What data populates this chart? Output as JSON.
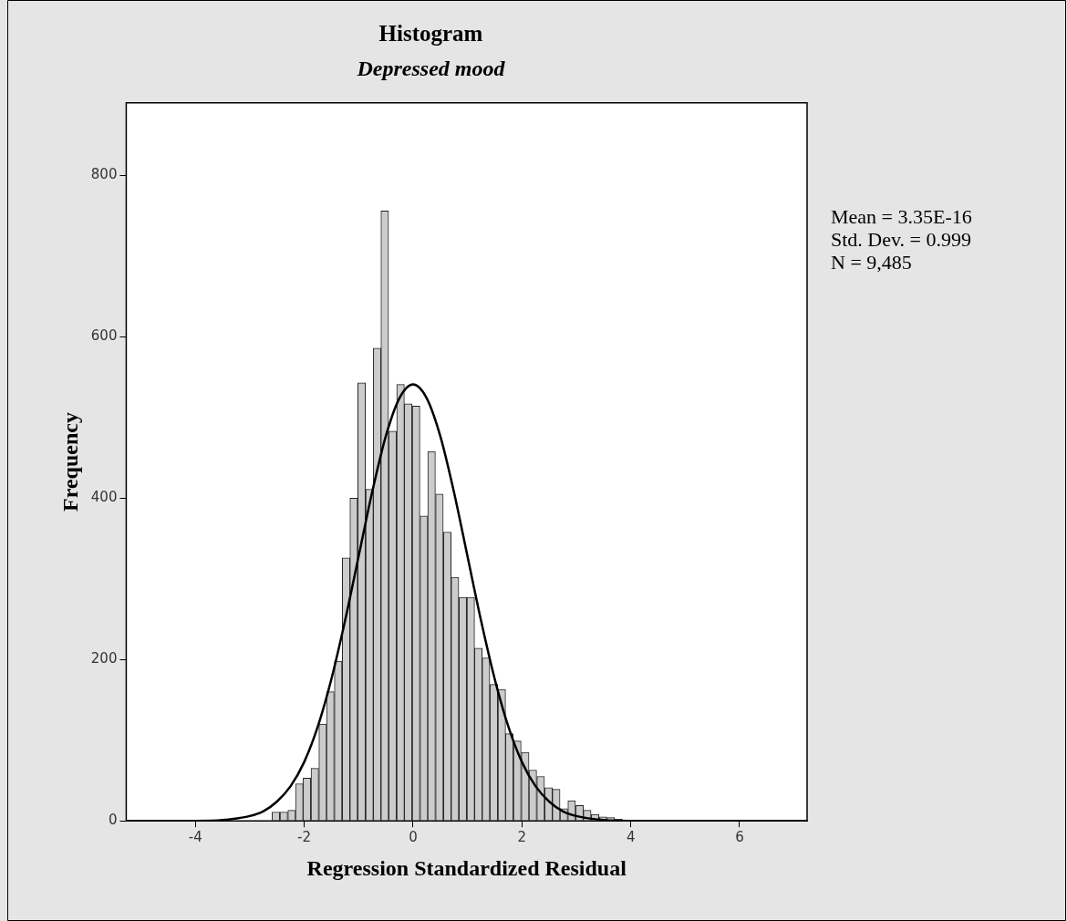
{
  "chart_data": {
    "type": "histogram",
    "title": "Histogram",
    "subtitle": "Depressed mood",
    "xlabel": "Regression Standardized Residual",
    "ylabel": "Frequency",
    "bins": [
      -2.59,
      -2.45,
      -2.3,
      -2.16,
      -2.02,
      -1.88,
      -1.73,
      -1.59,
      -1.45,
      -1.3,
      -1.16,
      -1.02,
      -0.87,
      -0.73,
      -0.59,
      -0.45,
      -0.3,
      -0.16,
      -0.02,
      0.13,
      0.27,
      0.41,
      0.56,
      0.7,
      0.84,
      0.99,
      1.13,
      1.27,
      1.41,
      1.56,
      1.7,
      1.84,
      1.99,
      2.13,
      2.27,
      2.42,
      2.56,
      2.7,
      2.84,
      2.99,
      3.13,
      3.27,
      3.42,
      3.56,
      3.7,
      3.85
    ],
    "values": [
      11,
      11,
      13,
      46,
      53,
      65,
      120,
      160,
      198,
      326,
      400,
      543,
      411,
      586,
      756,
      483,
      541,
      517,
      514,
      378,
      458,
      405,
      358,
      302,
      277,
      277,
      214,
      202,
      169,
      163,
      108,
      99,
      85,
      63,
      55,
      41,
      39,
      15,
      25,
      19,
      13,
      8,
      5,
      4,
      2
    ],
    "color": "#cccccc",
    "series": [
      {
        "type": "line",
        "color": "#000000",
        "x": [
          -5.27,
          -4,
          -3.5,
          -3,
          -2.75,
          -2.5,
          -2.25,
          -2,
          -1.75,
          -1.5,
          -1.25,
          -1,
          -0.75,
          -0.5,
          -0.25,
          0,
          0.25,
          0.5,
          0.75,
          1,
          1.25,
          1.5,
          1.75,
          2,
          2.25,
          2.5,
          2.75,
          3,
          3.5,
          4,
          7.24
        ],
        "values": [
          0,
          0,
          1,
          6,
          12,
          24,
          43,
          73,
          117,
          176,
          248,
          328,
          408,
          477,
          524,
          541,
          524,
          477,
          408,
          328,
          248,
          176,
          117,
          73,
          43,
          24,
          12,
          6,
          1,
          0,
          0
        ]
      }
    ],
    "xlim": [
      -5.27,
      7.24
    ],
    "xticks": [
      -4,
      -2,
      0,
      2,
      4,
      6
    ],
    "ylim": [
      0,
      890
    ],
    "yticks": [
      0,
      200,
      400,
      600,
      800
    ],
    "grid": false,
    "legend": false,
    "marker": "none",
    "annotations": [
      "Mean = 3.35E-16",
      "Std. Dev. = 0.999",
      "N = 9,485"
    ]
  }
}
